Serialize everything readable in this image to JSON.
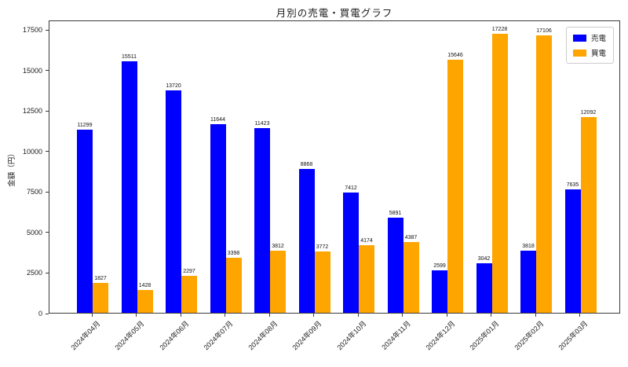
{
  "chart_data": {
    "type": "bar",
    "title": "月別の売電・買電グラフ",
    "xlabel": "",
    "ylabel": "金額（円）",
    "categories": [
      "2024年04月",
      "2024年05月",
      "2024年06月",
      "2024年07月",
      "2024年08月",
      "2024年09月",
      "2024年10月",
      "2024年11月",
      "2024年12月",
      "2025年01月",
      "2025年02月",
      "2025年03月"
    ],
    "series": [
      {
        "name": "売電",
        "color": "#0000ff",
        "values": [
          11299,
          15511,
          13720,
          11644,
          11423,
          8868,
          7412,
          5891,
          2599,
          3042,
          3818,
          7635
        ]
      },
      {
        "name": "買電",
        "color": "#ffa500",
        "values": [
          1827,
          1428,
          2297,
          3398,
          3812,
          3772,
          4174,
          4387,
          15646,
          17228,
          17106,
          12092
        ]
      }
    ],
    "y_ticks": [
      0,
      2500,
      5000,
      7500,
      10000,
      12500,
      15000,
      17500
    ],
    "ylim": [
      0,
      18100
    ],
    "bar_value_labels": true,
    "grid": false,
    "legend_position": "upper right",
    "text_color": "#1a1a1a",
    "spine_color": "#3a3a3a"
  }
}
